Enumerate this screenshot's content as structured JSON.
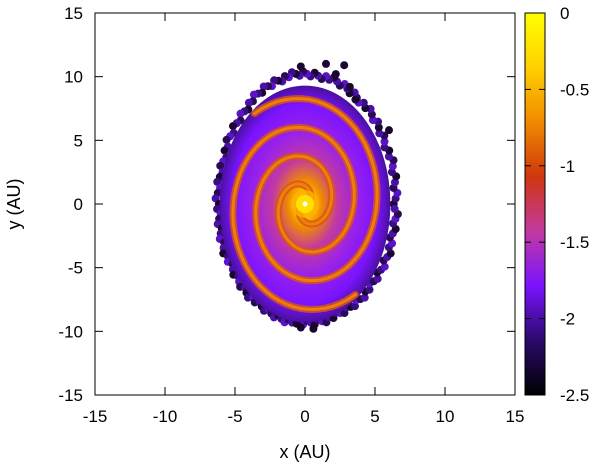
{
  "chart_data": {
    "type": "scatter",
    "xlabel": "x (AU)",
    "ylabel": "y (AU)",
    "xlim": [
      -15,
      15
    ],
    "ylim": [
      -15,
      15
    ],
    "x_ticks": [
      "-15",
      "-10",
      "-5",
      "0",
      "5",
      "10",
      "15"
    ],
    "y_ticks": [
      "-15",
      "-10",
      "-5",
      "0",
      "5",
      "10",
      "15"
    ],
    "colorbar": {
      "range": [
        -2.5,
        0
      ],
      "ticks": [
        "0",
        "-0.5",
        "-1",
        "-1.5",
        "-2",
        "-2.5"
      ],
      "colors": [
        "#000000",
        "#2a0a6a",
        "#7a13ff",
        "#c23aa0",
        "#d0360e",
        "#f08a00",
        "#ffd000",
        "#ffff00"
      ]
    },
    "structure": {
      "center": [
        0,
        0
      ],
      "disk_extent_x": [
        -6.5,
        6.8
      ],
      "disk_extent_y": [
        -9.8,
        11.0
      ],
      "spiral_arms": 2
    },
    "grid": false,
    "legend": "none"
  }
}
